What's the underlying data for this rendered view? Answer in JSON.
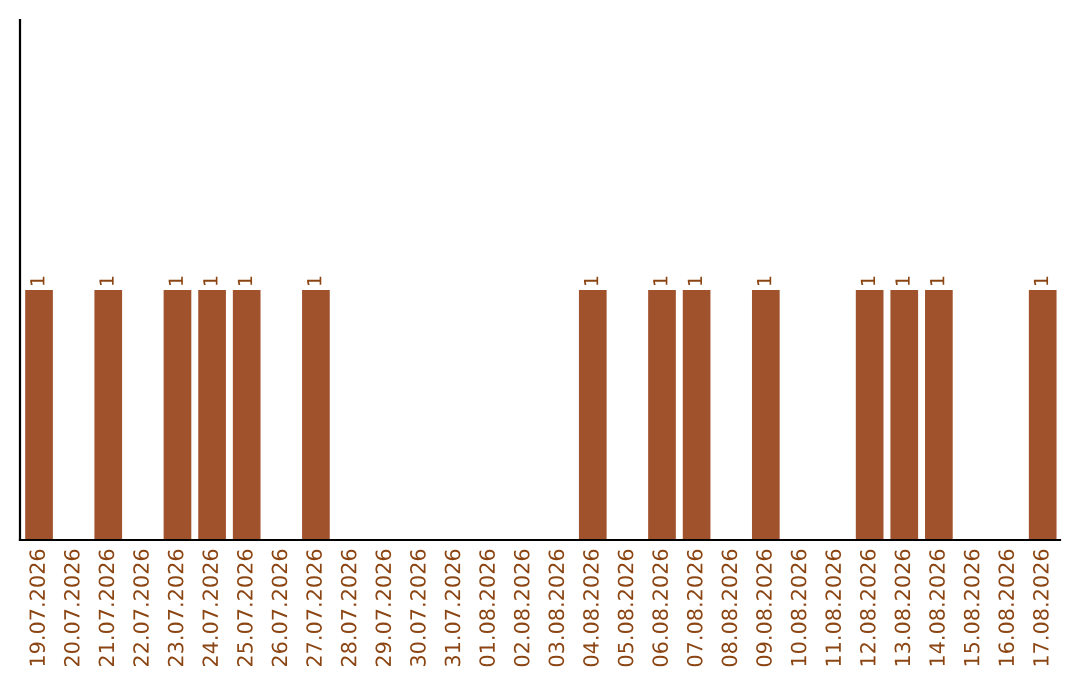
{
  "chart_data": {
    "type": "bar",
    "categories": [
      "19.07.2026",
      "20.07.2026",
      "21.07.2026",
      "22.07.2026",
      "23.07.2026",
      "24.07.2026",
      "25.07.2026",
      "26.07.2026",
      "27.07.2026",
      "28.07.2026",
      "29.07.2026",
      "30.07.2026",
      "31.07.2026",
      "01.08.2026",
      "02.08.2026",
      "03.08.2026",
      "04.08.2026",
      "05.08.2026",
      "06.08.2026",
      "07.08.2026",
      "08.08.2026",
      "09.08.2026",
      "10.08.2026",
      "11.08.2026",
      "12.08.2026",
      "13.08.2026",
      "14.08.2026",
      "15.08.2026",
      "16.08.2026",
      "17.08.2026"
    ],
    "values": [
      1,
      0,
      1,
      0,
      1,
      1,
      1,
      0,
      1,
      0,
      0,
      0,
      0,
      0,
      0,
      0,
      1,
      0,
      1,
      1,
      0,
      1,
      0,
      0,
      1,
      1,
      1,
      0,
      0,
      1
    ],
    "value_labels": [
      "1",
      null,
      "1",
      null,
      "1",
      "1",
      "1",
      null,
      "1",
      null,
      null,
      null,
      null,
      null,
      null,
      null,
      "1",
      null,
      "1",
      "1",
      null,
      "1",
      null,
      null,
      "1",
      "1",
      "1",
      null,
      null,
      "1"
    ],
    "color": "#a0522d",
    "ylim": [
      0,
      2.08
    ],
    "tick_labels": "x",
    "grid": false
  }
}
